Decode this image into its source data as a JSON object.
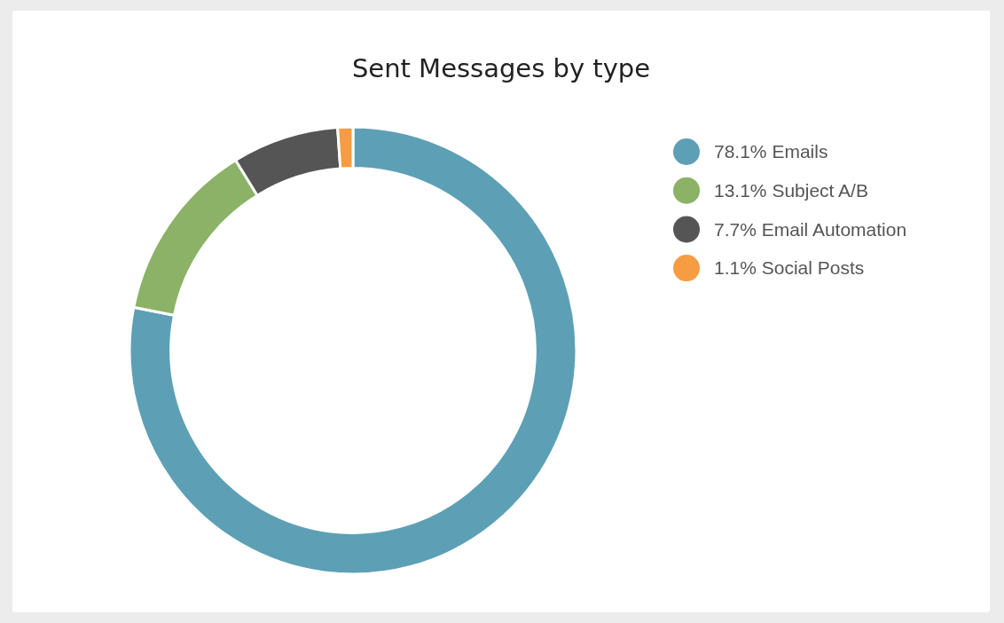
{
  "chart_data": {
    "type": "donut",
    "title": "Sent Messages by type",
    "categories": [
      "Emails",
      "Subject A/B",
      "Email Automation",
      "Social Posts"
    ],
    "values": [
      78.1,
      13.1,
      7.7,
      1.1
    ],
    "colors": [
      "#5da0b5",
      "#8bb266",
      "#555555",
      "#f69c42"
    ],
    "value_labels": [
      "78.1%",
      "13.1%",
      "7.7%",
      "1.1%"
    ],
    "legend": "top right"
  }
}
